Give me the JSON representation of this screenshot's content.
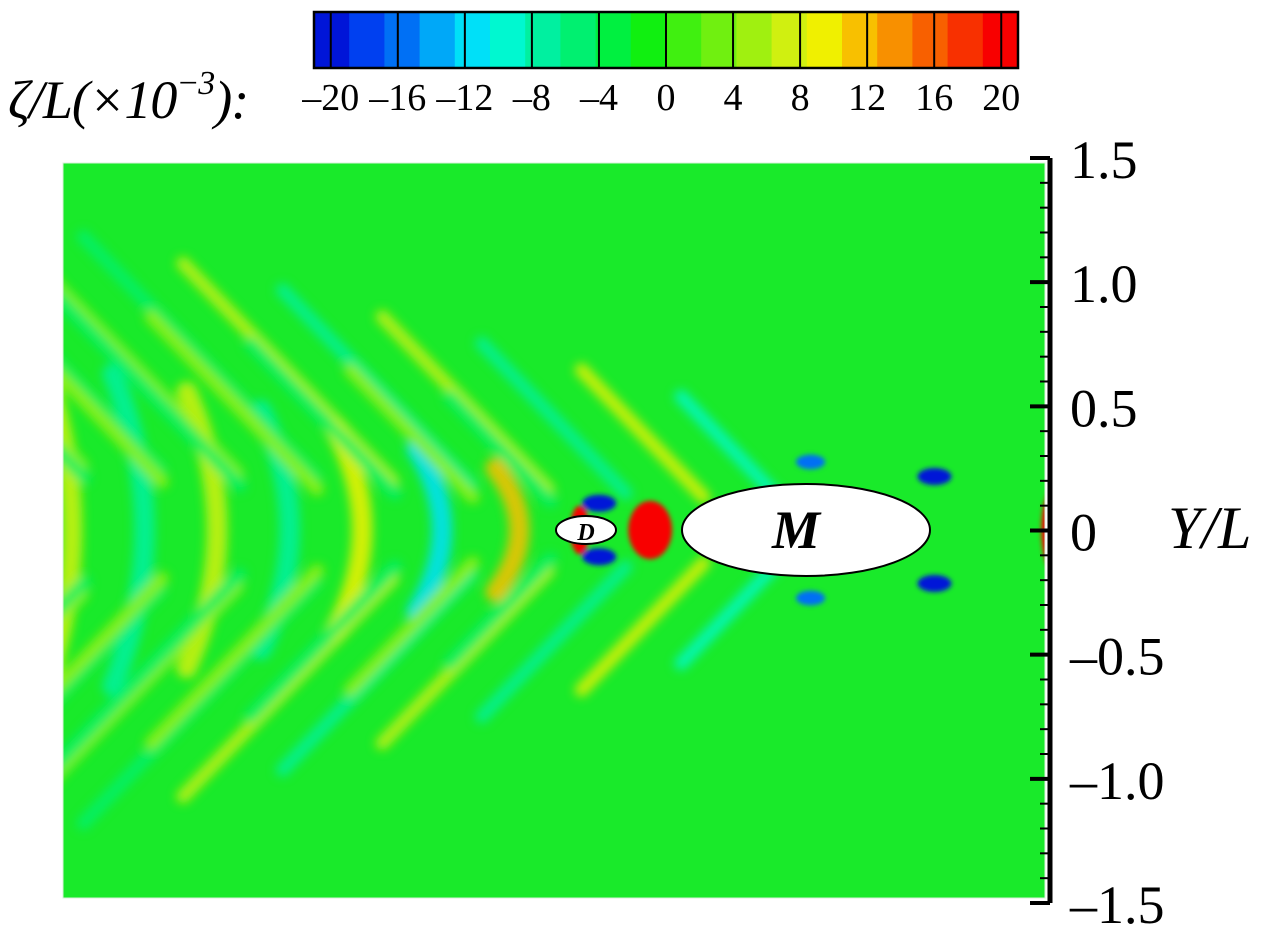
{
  "chart_data": {
    "type": "heatmap",
    "title": "",
    "xlabel": "",
    "ylabel": "Y/L",
    "ylim": [
      -1.5,
      1.5
    ],
    "yticks": [
      -1.5,
      -1.0,
      -0.5,
      0,
      0.5,
      1.0,
      1.5
    ],
    "ytick_labels": [
      "–1.5",
      "–1.0",
      "–0.5",
      "0",
      "0.5",
      "1.0",
      "1.5"
    ],
    "grid": false,
    "colorbar": {
      "label_main": "ζ/L(×10",
      "label_exponent": "−3",
      "label_tail": "):",
      "range": [
        -21,
        21
      ],
      "ticks": [
        -20,
        -16,
        -12,
        -8,
        -4,
        0,
        4,
        8,
        12,
        16,
        20
      ],
      "tick_labels": [
        "–20",
        "–16",
        "–12",
        "–8",
        "–4",
        "0",
        "4",
        "8",
        "12",
        "16",
        "20"
      ],
      "colors": [
        "#0015d8",
        "#0040f0",
        "#0070f5",
        "#00a8f8",
        "#00e0f8",
        "#00f8d0",
        "#00f0a0",
        "#00f070",
        "#00f040",
        "#10f010",
        "#40f010",
        "#70f010",
        "#a0f010",
        "#d0f010",
        "#f0f000",
        "#f8c000",
        "#f89000",
        "#f86000",
        "#f83000",
        "#f80000"
      ]
    },
    "bodies": [
      {
        "label": "D",
        "x": 0.0,
        "y": 0.0,
        "semi_axis_x": 0.26,
        "semi_axis_y": 0.06
      },
      {
        "label": "M",
        "x": 0.95,
        "y": 0.0,
        "semi_axis_x": 1.0,
        "semi_axis_y": 0.19
      }
    ],
    "wave_pattern": {
      "kelvin_arms": [
        {
          "origin_x": 0.95,
          "intensity": 1.0
        },
        {
          "origin_x": 0.0,
          "intensity": 0.7
        }
      ],
      "transverse_waves_behind_D": [
        {
          "x": -0.3,
          "value": 12
        },
        {
          "x": -0.62,
          "value": -11
        },
        {
          "x": -0.95,
          "value": 9
        },
        {
          "x": -1.25,
          "value": -8
        },
        {
          "x": -1.55,
          "value": 8
        },
        {
          "x": -1.85,
          "value": -7
        },
        {
          "x": -2.15,
          "value": 7
        },
        {
          "x": -2.45,
          "value": -7
        },
        {
          "x": -2.75,
          "value": 6
        },
        {
          "x": -3.05,
          "value": -6
        },
        {
          "x": -3.35,
          "value": 6
        },
        {
          "x": -3.65,
          "value": -5
        },
        {
          "x": -3.9,
          "value": 5
        }
      ],
      "bow_peak_M": 21,
      "bow_peak_D": 21
    }
  }
}
